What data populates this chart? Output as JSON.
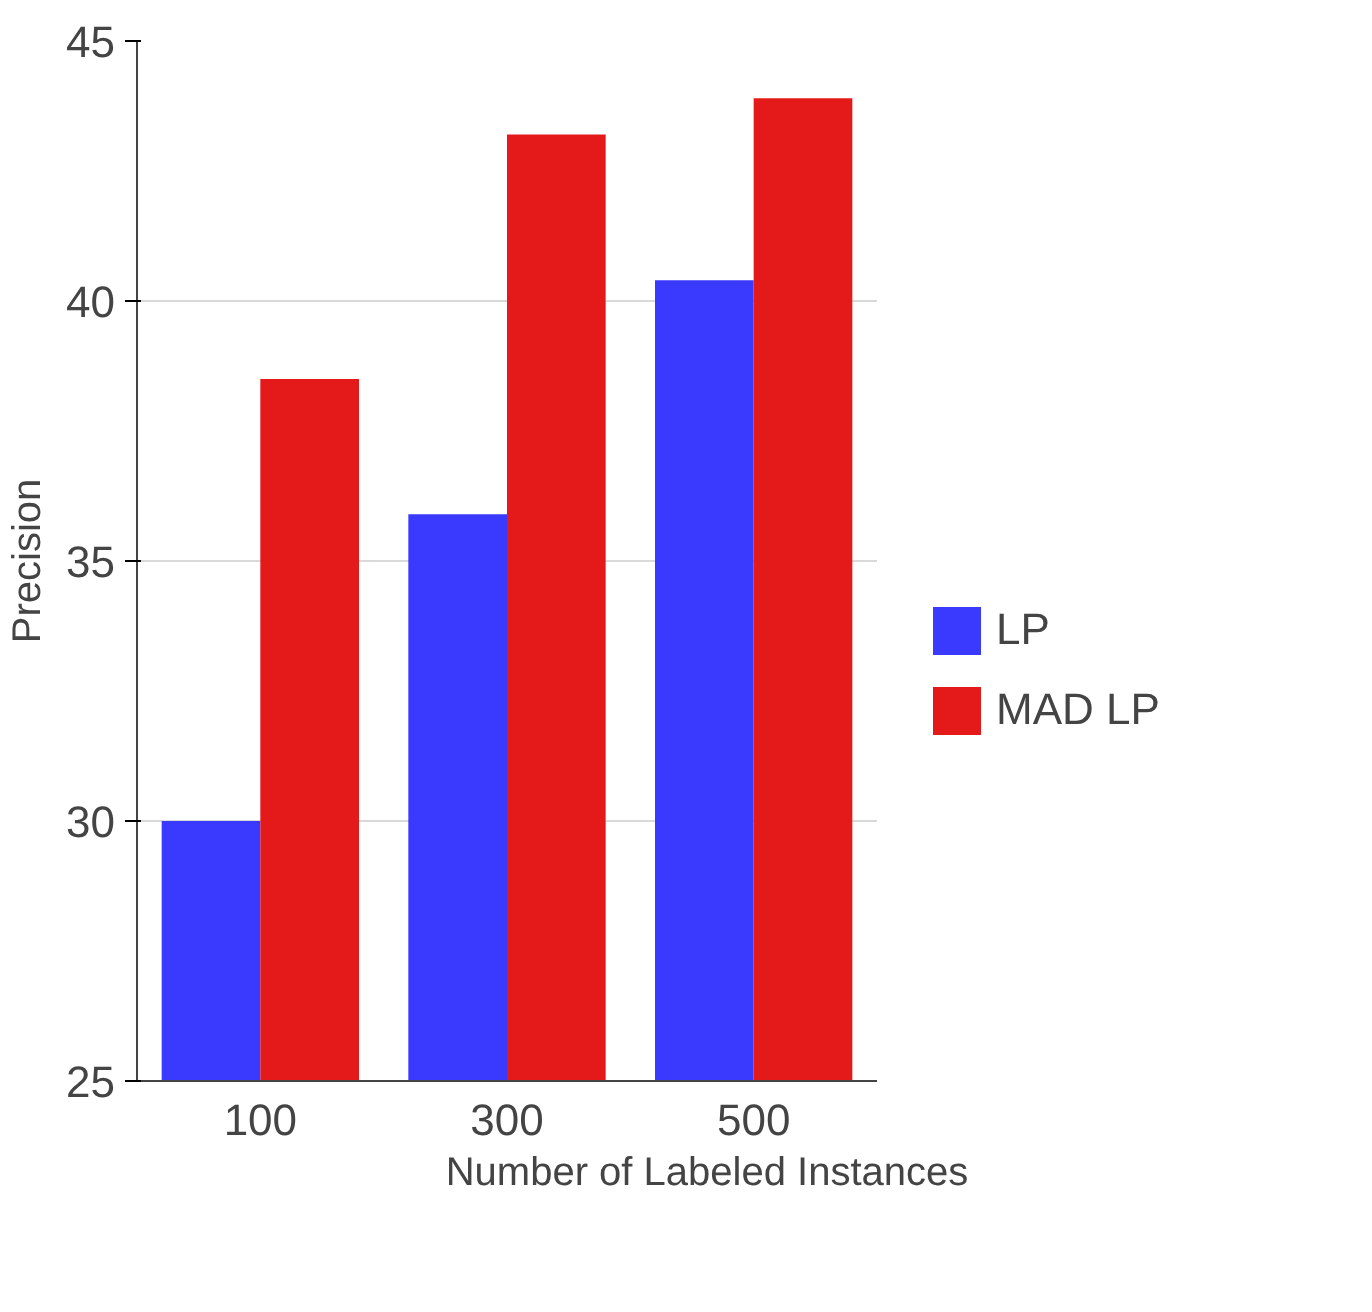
{
  "chart_data": {
    "type": "bar",
    "xlabel": "Number of Labeled Instances",
    "ylabel": "Precision",
    "categories": [
      "100",
      "300",
      "500"
    ],
    "series": [
      {
        "name": "LP",
        "color": "#3a3aff",
        "values": [
          30.0,
          35.9,
          40.4
        ]
      },
      {
        "name": "MAD LP",
        "color": "#e41a1a",
        "values": [
          38.5,
          43.2,
          43.9
        ]
      }
    ],
    "ylim": [
      25,
      45
    ],
    "yticks": [
      25,
      30,
      35,
      40,
      45
    ],
    "grid": "y",
    "legend": "right"
  }
}
